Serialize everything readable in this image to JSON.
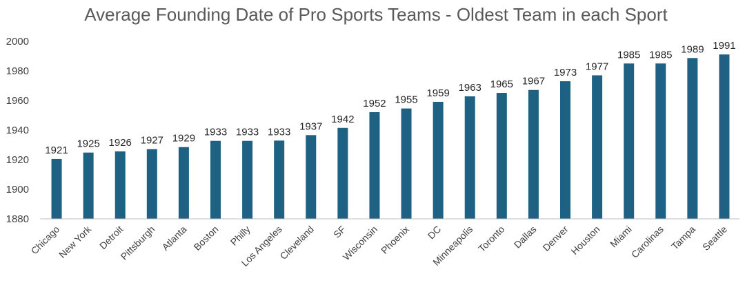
{
  "chart_data": {
    "type": "bar",
    "title": "Average Founding Date of Pro Sports Teams - Oldest Team in each Sport",
    "xlabel": "",
    "ylabel": "",
    "ylim": [
      1880,
      2000
    ],
    "yticks": [
      1880,
      1900,
      1920,
      1940,
      1960,
      1980,
      2000
    ],
    "grid": false,
    "legend": "none",
    "bar_color": "#1f6183",
    "categories": [
      "Chicago",
      "New York",
      "Detroit",
      "Pittsburgh",
      "Atlanta",
      "Boston",
      "Philly",
      "Los Angeles",
      "Cleveland",
      "SF",
      "Wisconsin",
      "Phoenix",
      "DC",
      "Minneapolis",
      "Toronto",
      "Dallas",
      "Denver",
      "Houston",
      "Miami",
      "Carolinas",
      "Tampa",
      "Seattle"
    ],
    "values": [
      1920.5,
      1924.8,
      1925.6,
      1927.1,
      1928.5,
      1932.7,
      1932.7,
      1932.9,
      1936.6,
      1941.5,
      1952.1,
      1954.6,
      1959.1,
      1962.8,
      1965.1,
      1967.1,
      1973.0,
      1977.0,
      1985.0,
      1985.0,
      1988.7,
      1991.1
    ],
    "data_labels": [
      "1921",
      "1925",
      "1926",
      "1927",
      "1929",
      "1933",
      "1933",
      "1933",
      "1937",
      "1942",
      "1952",
      "1955",
      "1959",
      "1963",
      "1965",
      "1967",
      "1973",
      "1977",
      "1985",
      "1985",
      "1989",
      "1991"
    ]
  }
}
